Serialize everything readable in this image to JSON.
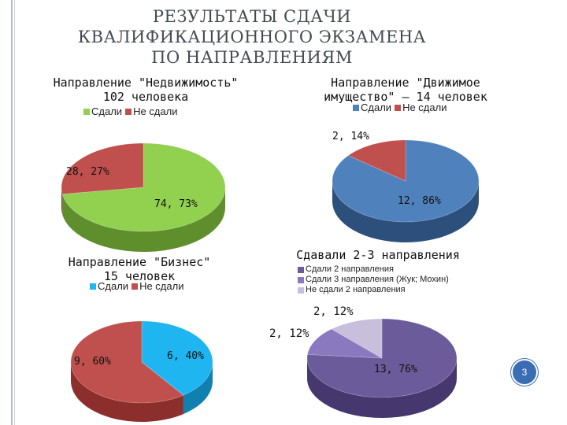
{
  "slide": {
    "title_lines": [
      "РЕЗУЛЬТАТЫ СДАЧИ",
      "КВАЛИФИКАЦИОННОГО ЭКЗАМЕНА",
      "ПО НАПРАВЛЕНИЯМ"
    ],
    "page_number": "3"
  },
  "colors": {
    "green": "#92d050",
    "green_side": "#5f8f2c",
    "red": "#c0504d",
    "red_side": "#8c2f2c",
    "blue": "#4f81bd",
    "blue_side": "#2c4f7c",
    "cyan": "#1fb5f0",
    "cyan_side": "#1080b0",
    "purple": "#6b5b9a",
    "purple_side": "#46386e",
    "lavender": "#8b79bf",
    "lavender_side": "#5e4f8c",
    "lilac": "#c8bfdc",
    "lilac_side": "#8f86a6",
    "accent": "#3b6db5"
  },
  "chart_data": [
    {
      "type": "pie",
      "title_lines": [
        "Направление \"Недвижимость\"",
        "102 человека"
      ],
      "legend": [
        "Сдали",
        "Не сдали"
      ],
      "slices": [
        {
          "label": "Сдали",
          "value": 74,
          "percent": 73,
          "text": "74, 73%"
        },
        {
          "label": "Не сдали",
          "value": 28,
          "percent": 27,
          "text": "28, 27%"
        }
      ]
    },
    {
      "type": "pie",
      "title_lines": [
        "Направление \"Движимое",
        "имущество\" – 14 человек"
      ],
      "legend": [
        "Сдали",
        "Не сдали"
      ],
      "slices": [
        {
          "label": "Сдали",
          "value": 12,
          "percent": 86,
          "text": "12, 86%"
        },
        {
          "label": "Не сдали",
          "value": 2,
          "percent": 14,
          "text": "2, 14%"
        }
      ]
    },
    {
      "type": "pie",
      "title_lines": [
        "Направление \"Бизнес\"",
        "15 человек"
      ],
      "legend": [
        "Сдали",
        "Не сдали"
      ],
      "slices": [
        {
          "label": "Сдали",
          "value": 6,
          "percent": 40,
          "text": "6, 40%"
        },
        {
          "label": "Не сдали",
          "value": 9,
          "percent": 60,
          "text": "9, 60%"
        }
      ]
    },
    {
      "type": "pie",
      "title_lines": [
        "Сдавали 2-3 направления"
      ],
      "legend": [
        "Сдали 2 направления",
        "Сдали 3 направления (Жук; Мохин)",
        "Не сдали 2 направления"
      ],
      "slices": [
        {
          "label": "Сдали 2 направления",
          "value": 13,
          "percent": 76,
          "text": "13, 76%"
        },
        {
          "label": "Сдали 3 направления (Жук; Мохин)",
          "value": 2,
          "percent": 12,
          "text": "2, 12%"
        },
        {
          "label": "Не сдали 2 направления",
          "value": 2,
          "percent": 12,
          "text": "2, 12%"
        }
      ]
    }
  ]
}
